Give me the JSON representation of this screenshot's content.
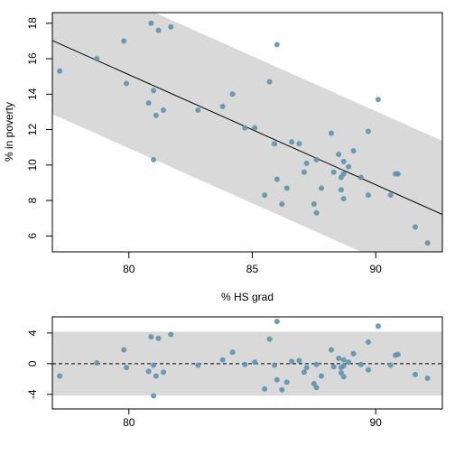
{
  "colors": {
    "point": "#5b92ad",
    "band": "#d9d9d9",
    "line": "#000000",
    "frame": "#000000"
  },
  "chart_data": [
    {
      "type": "scatter",
      "title": "",
      "xlabel": "% HS grad",
      "ylabel": "% in poverty",
      "xlim": [
        76.9,
        92.7
      ],
      "ylim": [
        5.1,
        18.6
      ],
      "x_ticks": [
        80,
        85,
        90
      ],
      "y_ticks": [
        6,
        8,
        10,
        12,
        14,
        16,
        18
      ],
      "fit_line": {
        "intercept": 64.78,
        "slope": -0.621
      },
      "band_halfwidth": 4.15,
      "grid": false,
      "points": [
        {
          "x": 77.2,
          "y": 15.3
        },
        {
          "x": 78.7,
          "y": 16.0
        },
        {
          "x": 79.8,
          "y": 17.0
        },
        {
          "x": 79.9,
          "y": 14.6
        },
        {
          "x": 80.8,
          "y": 13.5
        },
        {
          "x": 80.9,
          "y": 18.0
        },
        {
          "x": 81.0,
          "y": 14.2
        },
        {
          "x": 81.0,
          "y": 10.3
        },
        {
          "x": 81.1,
          "y": 12.8
        },
        {
          "x": 81.2,
          "y": 17.6
        },
        {
          "x": 81.4,
          "y": 13.1
        },
        {
          "x": 81.7,
          "y": 17.8
        },
        {
          "x": 82.8,
          "y": 13.1
        },
        {
          "x": 83.8,
          "y": 13.3
        },
        {
          "x": 84.2,
          "y": 14.0
        },
        {
          "x": 84.7,
          "y": 12.1
        },
        {
          "x": 85.1,
          "y": 12.1
        },
        {
          "x": 85.5,
          "y": 8.3
        },
        {
          "x": 85.7,
          "y": 14.7
        },
        {
          "x": 85.9,
          "y": 11.2
        },
        {
          "x": 86.0,
          "y": 9.2
        },
        {
          "x": 86.0,
          "y": 16.8
        },
        {
          "x": 86.2,
          "y": 7.8
        },
        {
          "x": 86.4,
          "y": 8.7
        },
        {
          "x": 86.6,
          "y": 11.3
        },
        {
          "x": 86.9,
          "y": 11.2
        },
        {
          "x": 87.1,
          "y": 9.6
        },
        {
          "x": 87.2,
          "y": 10.1
        },
        {
          "x": 87.5,
          "y": 7.8
        },
        {
          "x": 87.6,
          "y": 7.3
        },
        {
          "x": 87.6,
          "y": 10.3
        },
        {
          "x": 87.8,
          "y": 8.7
        },
        {
          "x": 88.2,
          "y": 11.8
        },
        {
          "x": 88.3,
          "y": 9.6
        },
        {
          "x": 88.5,
          "y": 10.6
        },
        {
          "x": 88.6,
          "y": 9.3
        },
        {
          "x": 88.6,
          "y": 8.6
        },
        {
          "x": 88.7,
          "y": 8.1
        },
        {
          "x": 88.7,
          "y": 10.2
        },
        {
          "x": 88.7,
          "y": 9.5
        },
        {
          "x": 88.9,
          "y": 9.9
        },
        {
          "x": 89.1,
          "y": 10.8
        },
        {
          "x": 89.4,
          "y": 9.3
        },
        {
          "x": 89.7,
          "y": 8.3
        },
        {
          "x": 89.7,
          "y": 11.9
        },
        {
          "x": 90.1,
          "y": 13.7
        },
        {
          "x": 90.6,
          "y": 8.3
        },
        {
          "x": 90.8,
          "y": 9.5
        },
        {
          "x": 90.9,
          "y": 9.5
        },
        {
          "x": 91.6,
          "y": 6.5
        },
        {
          "x": 92.1,
          "y": 5.6
        }
      ]
    },
    {
      "type": "scatter",
      "title": "",
      "xlabel": "",
      "ylabel": "",
      "xlim": [
        76.9,
        92.7
      ],
      "ylim": [
        -5.9,
        6.1
      ],
      "x_ticks": [
        80,
        90
      ],
      "y_ticks": [
        4,
        0,
        -4
      ],
      "y_tick_labels": [
        "4",
        "0",
        "-4"
      ],
      "band": [
        -4.15,
        4.15
      ],
      "zero_line": 0,
      "grid": false,
      "points": [
        {
          "x": 77.2,
          "y": -1.6
        },
        {
          "x": 78.7,
          "y": 0.1
        },
        {
          "x": 79.8,
          "y": 1.8
        },
        {
          "x": 79.9,
          "y": -0.5
        },
        {
          "x": 80.8,
          "y": -1.0
        },
        {
          "x": 80.9,
          "y": 3.5
        },
        {
          "x": 81.0,
          "y": -0.2
        },
        {
          "x": 81.0,
          "y": -4.2
        },
        {
          "x": 81.1,
          "y": -1.6
        },
        {
          "x": 81.2,
          "y": 3.3
        },
        {
          "x": 81.4,
          "y": -1.1
        },
        {
          "x": 81.7,
          "y": 3.8
        },
        {
          "x": 82.8,
          "y": -0.2
        },
        {
          "x": 83.8,
          "y": 0.5
        },
        {
          "x": 84.2,
          "y": 1.5
        },
        {
          "x": 84.7,
          "y": -0.1
        },
        {
          "x": 85.1,
          "y": 0.2
        },
        {
          "x": 85.5,
          "y": -3.3
        },
        {
          "x": 85.7,
          "y": 3.2
        },
        {
          "x": 85.9,
          "y": -0.2
        },
        {
          "x": 86.0,
          "y": -2.1
        },
        {
          "x": 86.0,
          "y": 5.5
        },
        {
          "x": 86.2,
          "y": -3.4
        },
        {
          "x": 86.4,
          "y": -2.4
        },
        {
          "x": 86.6,
          "y": 0.3
        },
        {
          "x": 86.9,
          "y": 0.4
        },
        {
          "x": 87.1,
          "y": -1.1
        },
        {
          "x": 87.2,
          "y": -0.5
        },
        {
          "x": 87.5,
          "y": -2.6
        },
        {
          "x": 87.6,
          "y": -3.1
        },
        {
          "x": 87.6,
          "y": -0.1
        },
        {
          "x": 87.8,
          "y": -1.6
        },
        {
          "x": 88.2,
          "y": 1.8
        },
        {
          "x": 88.3,
          "y": -0.4
        },
        {
          "x": 88.5,
          "y": 0.7
        },
        {
          "x": 88.6,
          "y": -0.5
        },
        {
          "x": 88.6,
          "y": -1.2
        },
        {
          "x": 88.7,
          "y": -1.7
        },
        {
          "x": 88.7,
          "y": 0.5
        },
        {
          "x": 88.7,
          "y": -0.3
        },
        {
          "x": 88.9,
          "y": 0.2
        },
        {
          "x": 89.1,
          "y": 1.3
        },
        {
          "x": 89.4,
          "y": -0.1
        },
        {
          "x": 89.7,
          "y": -0.8
        },
        {
          "x": 89.7,
          "y": 2.8
        },
        {
          "x": 90.1,
          "y": 4.9
        },
        {
          "x": 90.6,
          "y": -0.2
        },
        {
          "x": 90.8,
          "y": 1.1
        },
        {
          "x": 90.9,
          "y": 1.2
        },
        {
          "x": 91.6,
          "y": -1.4
        },
        {
          "x": 92.1,
          "y": -1.9
        }
      ]
    }
  ]
}
